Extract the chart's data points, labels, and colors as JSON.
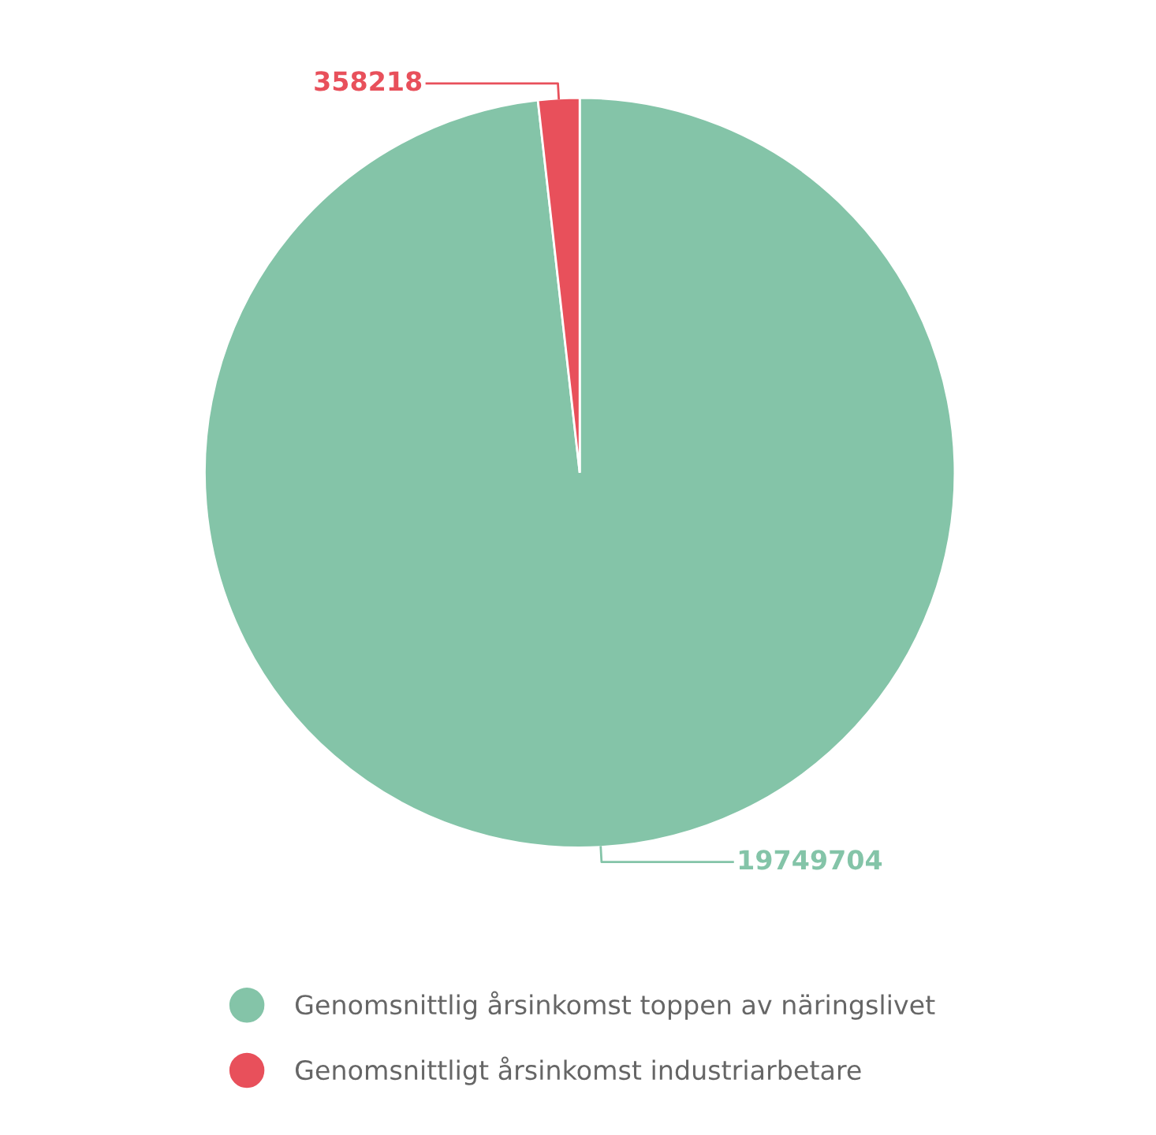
{
  "chart_data": {
    "type": "pie",
    "categories": [
      "Genomsnittlig årsinkomst toppen av näringslivet",
      "Genomsnittligt årsinkomst industriarbetare"
    ],
    "values": [
      19749704,
      358218
    ],
    "colors": [
      "#84c4a8",
      "#e8505b"
    ],
    "data_labels": true,
    "legend": "bottom"
  }
}
